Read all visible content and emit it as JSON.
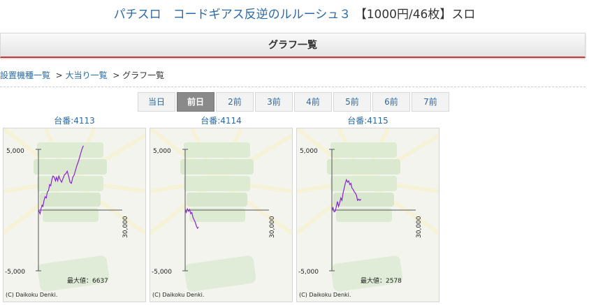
{
  "header": {
    "title_main": "パチスロ　コードギアス反逆のルルーシュ３",
    "title_rate": "【1000円/46枚】スロ"
  },
  "section_title": "グラフ一覧",
  "breadcrumb": {
    "items": [
      "設置機種一覧",
      "大当り一覧"
    ],
    "separator": ">",
    "current": "グラフ一覧"
  },
  "tabs": [
    {
      "label": "当日",
      "active": false
    },
    {
      "label": "前日",
      "active": true
    },
    {
      "label": "2前",
      "active": false
    },
    {
      "label": "3前",
      "active": false
    },
    {
      "label": "4前",
      "active": false
    },
    {
      "label": "5前",
      "active": false
    },
    {
      "label": "6前",
      "active": false
    },
    {
      "label": "7前",
      "active": false
    }
  ],
  "graphs": [
    {
      "machine_label": "台番:4113",
      "y_top_label": "5,000",
      "y_bottom_label": "-5,000",
      "x_label": "30,000",
      "max_label": "最大値：6637",
      "copyright": "(C) Daikoku Denki.",
      "chart_data": {
        "type": "line",
        "xlim": [
          0,
          30000
        ],
        "ylim": [
          -5000,
          5000
        ],
        "series": [
          {
            "color": "#8b22d8",
            "points": [
              [
                0,
                0
              ],
              [
                300,
                -150
              ],
              [
                600,
                -300
              ],
              [
                900,
                100
              ],
              [
                1300,
                400
              ],
              [
                1600,
                300
              ],
              [
                2000,
                800
              ],
              [
                2400,
                1100
              ],
              [
                2800,
                1000
              ],
              [
                3200,
                1500
              ],
              [
                3600,
                1600
              ],
              [
                4000,
                2100
              ],
              [
                4400,
                2000
              ],
              [
                4800,
                2500
              ],
              [
                5200,
                2800
              ],
              [
                5700,
                2700
              ],
              [
                6100,
                2400
              ],
              [
                6500,
                2700
              ],
              [
                6900,
                2400
              ],
              [
                7300,
                2800
              ],
              [
                7800,
                2500
              ],
              [
                8300,
                2300
              ],
              [
                8800,
                2600
              ],
              [
                9300,
                2900
              ],
              [
                9800,
                3000
              ],
              [
                10300,
                3200
              ],
              [
                10800,
                2800
              ],
              [
                11300,
                2300
              ],
              [
                11800,
                2200
              ],
              [
                12300,
                2700
              ],
              [
                12800,
                2900
              ],
              [
                13300,
                3300
              ],
              [
                13800,
                3700
              ],
              [
                14300,
                4000
              ],
              [
                14800,
                4400
              ],
              [
                15300,
                4800
              ],
              [
                15700,
                5100
              ],
              [
                16100,
                5300
              ]
            ]
          }
        ]
      }
    },
    {
      "machine_label": "台番:4114",
      "y_top_label": "5,000",
      "y_bottom_label": "-5,000",
      "x_label": "30,000",
      "max_label": "",
      "copyright": "(C) Daikoku Denki.",
      "chart_data": {
        "type": "line",
        "xlim": [
          0,
          30000
        ],
        "ylim": [
          -5000,
          5000
        ],
        "series": [
          {
            "color": "#8b22d8",
            "points": [
              [
                0,
                0
              ],
              [
                400,
                -200
              ],
              [
                800,
                100
              ],
              [
                1200,
                -100
              ],
              [
                1600,
                50
              ],
              [
                2000,
                -300
              ],
              [
                2400,
                -200
              ],
              [
                2800,
                -600
              ],
              [
                3200,
                -800
              ],
              [
                3600,
                -1000
              ],
              [
                4000,
                -1300
              ],
              [
                4400,
                -1500
              ],
              [
                4800,
                -1400
              ]
            ]
          }
        ]
      }
    },
    {
      "machine_label": "台番:4115",
      "y_top_label": "5,000",
      "y_bottom_label": "-5,000",
      "x_label": "30,000",
      "max_label": "最大値：2578",
      "copyright": "(C) Daikoku Denki.",
      "chart_data": {
        "type": "line",
        "xlim": [
          0,
          30000
        ],
        "ylim": [
          -5000,
          5000
        ],
        "series": [
          {
            "color": "#8b22d8",
            "points": [
              [
                0,
                0
              ],
              [
                400,
                200
              ],
              [
                800,
                -150
              ],
              [
                1200,
                -100
              ],
              [
                1600,
                300
              ],
              [
                2000,
                700
              ],
              [
                2400,
                300
              ],
              [
                2800,
                600
              ],
              [
                3200,
                1000
              ],
              [
                3600,
                800
              ],
              [
                4000,
                1400
              ],
              [
                4400,
                1800
              ],
              [
                4800,
                2200
              ],
              [
                5200,
                2500
              ],
              [
                5600,
                2300
              ],
              [
                6000,
                2400
              ],
              [
                6400,
                2100
              ],
              [
                6800,
                2200
              ],
              [
                7200,
                1800
              ],
              [
                7600,
                1700
              ],
              [
                8000,
                1500
              ],
              [
                8400,
                1400
              ],
              [
                8800,
                1200
              ],
              [
                9200,
                800
              ],
              [
                9600,
                900
              ],
              [
                10000,
                800
              ],
              [
                10400,
                900
              ]
            ]
          }
        ]
      }
    }
  ]
}
